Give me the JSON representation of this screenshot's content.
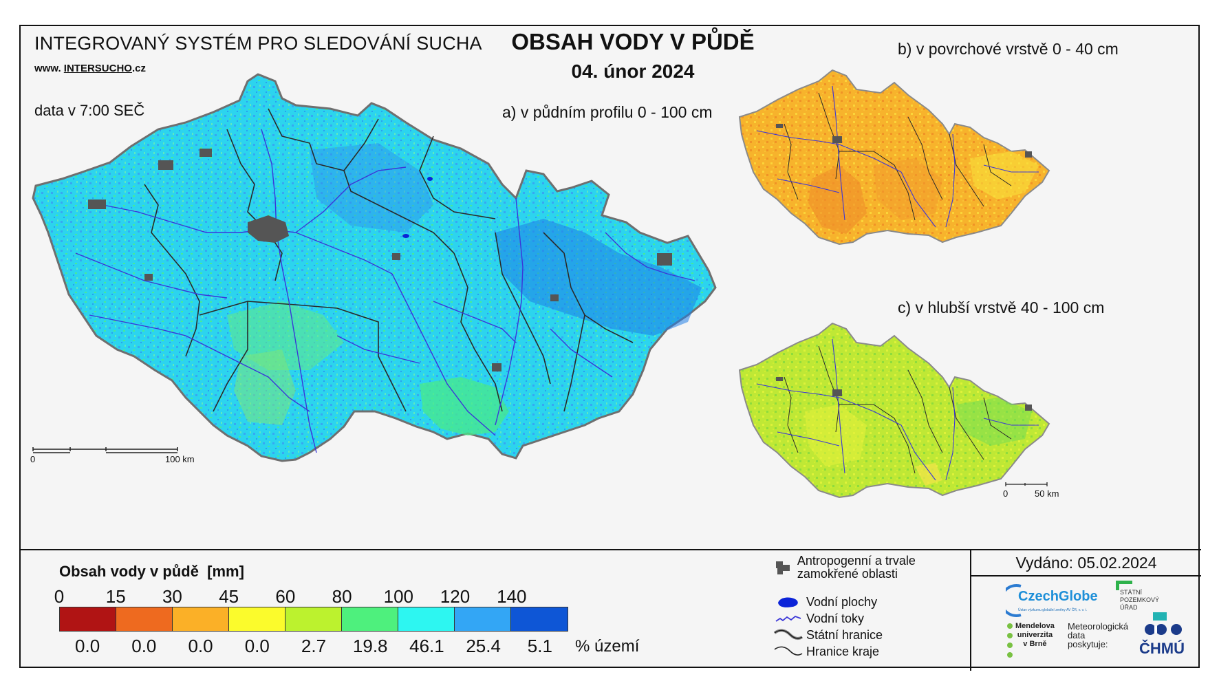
{
  "header": {
    "system_title": "INTEGROVANÝ SYSTÉM PRO SLEDOVÁNÍ SUCHA",
    "website_prefix": "www.",
    "website_main": "INTERSUCHO",
    "website_suffix": ".cz",
    "data_time": "data v 7:00 SEČ",
    "map_title": "OBSAH VODY V PŮDĚ",
    "map_date": "04. únor 2024"
  },
  "maps": {
    "a_label": "a) v půdním profilu 0 - 100 cm",
    "b_label": "b) v povrchové vrstvě 0 - 40 cm",
    "c_label": "c) v hlubší vrstvě 40 - 100 cm",
    "scale_main": {
      "start": "0",
      "end": "100 km"
    },
    "scale_small": {
      "start": "0",
      "end": "50 km"
    }
  },
  "legend": {
    "title": "Obsah vody v půdě",
    "unit": "[mm]",
    "thresholds": [
      "0",
      "15",
      "30",
      "45",
      "60",
      "80",
      "100",
      "120",
      "140"
    ],
    "classes": [
      {
        "color": "#b01414",
        "percent": "0.0"
      },
      {
        "color": "#ee6a1f",
        "percent": "0.0"
      },
      {
        "color": "#fbb027",
        "percent": "0.0"
      },
      {
        "color": "#fbfb2c",
        "percent": "0.0"
      },
      {
        "color": "#bcf22e",
        "percent": "2.7"
      },
      {
        "color": "#4ef07d",
        "percent": "19.8"
      },
      {
        "color": "#2df6f1",
        "percent": "46.1"
      },
      {
        "color": "#33a6f5",
        "percent": "25.4"
      },
      {
        "color": "#0e56d6",
        "percent": "5.1"
      }
    ],
    "percent_unit": "% území"
  },
  "map_keys": [
    {
      "icon": "urban-area-icon",
      "label": "Antropogenní a trvale zamokřené oblasti"
    },
    {
      "icon": "water-body-icon",
      "label": "Vodní plochy"
    },
    {
      "icon": "river-icon",
      "label": "Vodní toky"
    },
    {
      "icon": "state-border-icon",
      "label": "Státní hranice"
    },
    {
      "icon": "region-border-icon",
      "label": "Hranice kraje"
    }
  ],
  "issued": "Vydáno: 05.02.2024",
  "logos": {
    "czechglobe": "CzechGlobe",
    "czechglobe_sub": "Ústav výzkumu globální změny AV ČR, v. v. i.",
    "spu_line1": "STÁTNÍ",
    "spu_line2": "POZEMKOVÝ",
    "spu_line3": "ÚŘAD",
    "mendelu_line1": "Mendelova",
    "mendelu_line2": "univerzita",
    "mendelu_line3": "v Brně",
    "met_line1": "Meteorologická",
    "met_line2": "data",
    "met_line3": "poskytuje:",
    "chmu": "ČHMÚ"
  },
  "colors": {
    "map_a_fill": "#2ed6ea",
    "map_b_fill": "#f6b52b",
    "map_c_fill": "#b9e331",
    "river": "#3a36d8",
    "urban": "#555555",
    "border": "#222222"
  }
}
